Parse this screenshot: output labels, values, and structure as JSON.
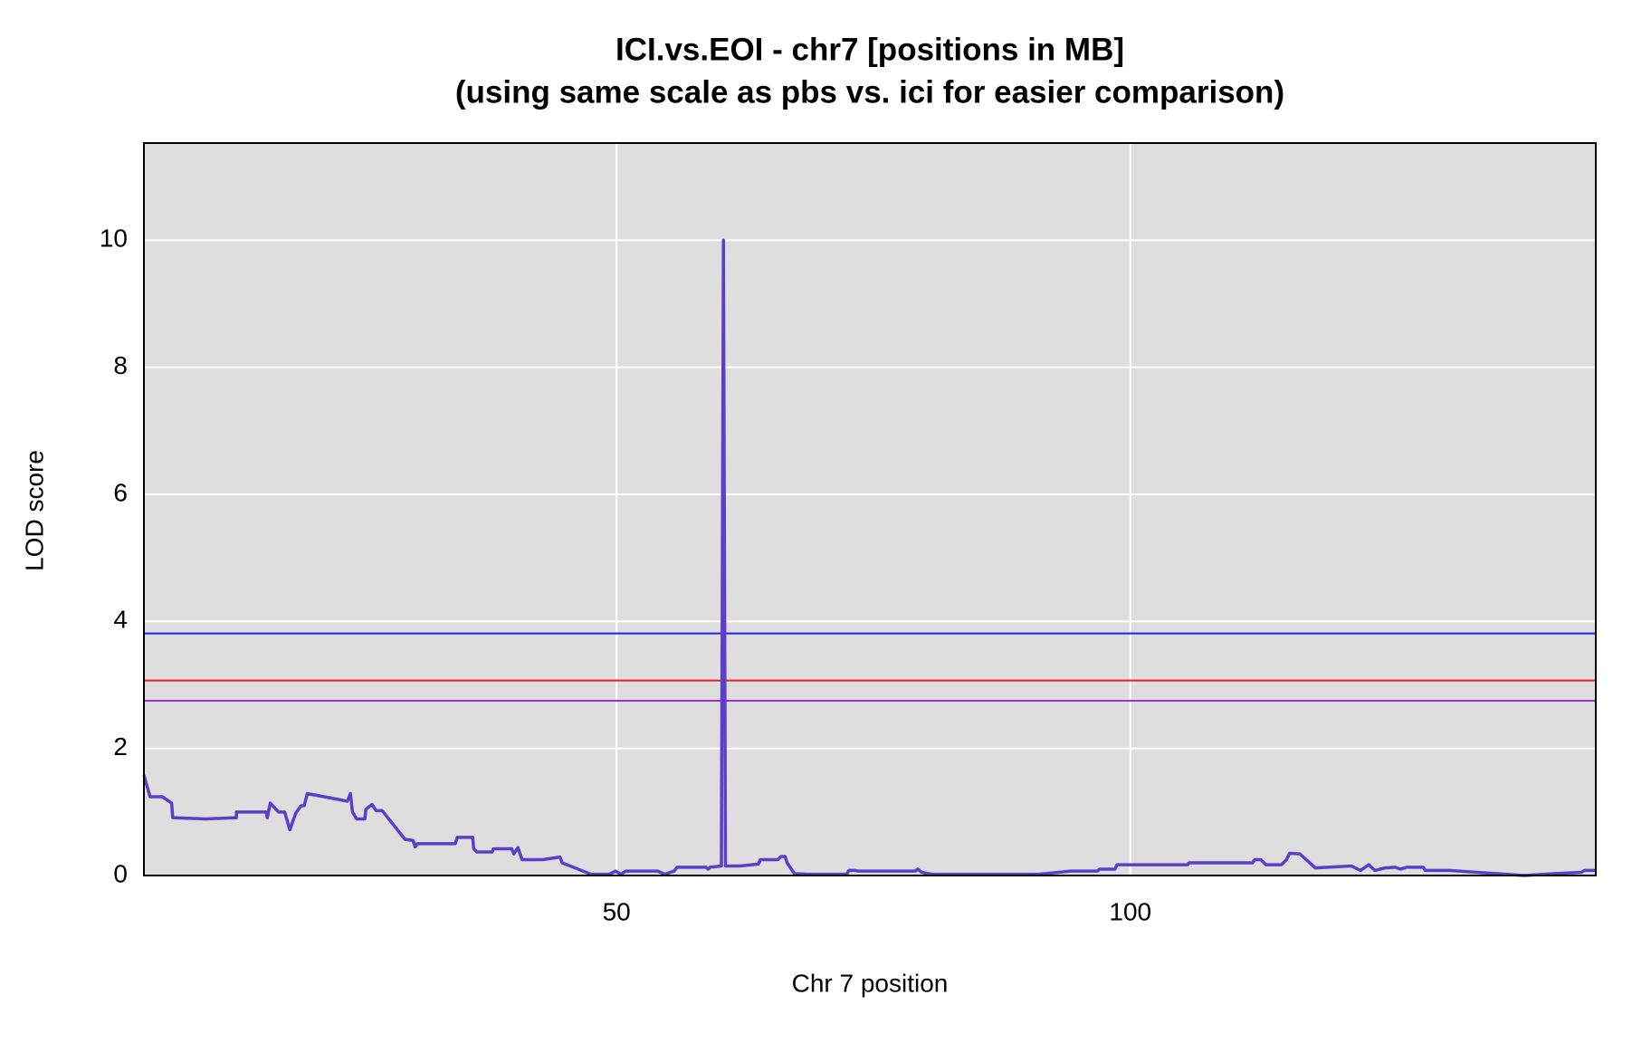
{
  "chart_data": {
    "type": "line",
    "title": "ICI.vs.EOI - chr7 [positions in MB]",
    "subtitle": "(using same scale as pbs vs. ici for easier comparison)",
    "x_label": "Chr 7 position",
    "y_label": "LOD score",
    "x": [
      4.0,
      4.6,
      5.8,
      6.7,
      6.8,
      10.0,
      13.0,
      13.0,
      15.9,
      16.0,
      16.3,
      17.1,
      17.7,
      18.2,
      18.8,
      19.3,
      19.6,
      19.9,
      23.8,
      24.1,
      24.3,
      24.7,
      25.5,
      25.6,
      26.2,
      26.6,
      27.2,
      29.4,
      30.2,
      30.4,
      30.6,
      34.3,
      34.5,
      36.0,
      36.1,
      36.4,
      37.9,
      38.0,
      39.8,
      40.0,
      40.4,
      40.8,
      42.8,
      44.5,
      44.7,
      47.5,
      49.3,
      49.9,
      50.4,
      50.9,
      54.0,
      54.7,
      55.6,
      55.9,
      58.7,
      58.9,
      59.1,
      60.2,
      60.4,
      60.6,
      62.0,
      63.8,
      64.0,
      65.7,
      66.0,
      66.4,
      66.6,
      67.3,
      68.6,
      72.4,
      72.6,
      73.2,
      73.5,
      79.1,
      79.3,
      79.7,
      80.7,
      91.1,
      94.2,
      96.8,
      97.0,
      98.5,
      98.7,
      105.6,
      105.7,
      111.9,
      112.1,
      112.7,
      113.2,
      114.7,
      115.2,
      115.5,
      116.5,
      118.0,
      121.5,
      122.4,
      123.2,
      123.8,
      124.8,
      125.8,
      126.3,
      126.9,
      128.5,
      128.7,
      131.0,
      138.3,
      141.4,
      143.9,
      144.2,
      145.3
    ],
    "values": [
      1.58,
      1.24,
      1.24,
      1.14,
      0.91,
      0.89,
      0.91,
      1.0,
      1.0,
      0.91,
      1.14,
      1.0,
      1.0,
      0.72,
      0.99,
      1.1,
      1.1,
      1.29,
      1.17,
      1.29,
      1.0,
      0.89,
      0.89,
      1.04,
      1.12,
      1.02,
      1.02,
      0.57,
      0.55,
      0.45,
      0.5,
      0.5,
      0.6,
      0.6,
      0.42,
      0.37,
      0.37,
      0.42,
      0.42,
      0.34,
      0.44,
      0.25,
      0.25,
      0.29,
      0.2,
      0.02,
      0.02,
      0.07,
      0.02,
      0.07,
      0.07,
      0.02,
      0.07,
      0.13,
      0.13,
      0.1,
      0.13,
      0.15,
      10.0,
      0.15,
      0.15,
      0.18,
      0.25,
      0.25,
      0.3,
      0.3,
      0.2,
      0.03,
      0.02,
      0.02,
      0.08,
      0.08,
      0.07,
      0.07,
      0.1,
      0.05,
      0.02,
      0.02,
      0.07,
      0.07,
      0.1,
      0.1,
      0.17,
      0.17,
      0.2,
      0.2,
      0.25,
      0.25,
      0.17,
      0.17,
      0.25,
      0.35,
      0.34,
      0.12,
      0.15,
      0.08,
      0.17,
      0.08,
      0.12,
      0.13,
      0.1,
      0.13,
      0.13,
      0.08,
      0.08,
      0,
      0.03,
      0.05,
      0.08,
      0.08
    ],
    "color": "#5a3fc9",
    "hlines": [
      {
        "value": 3.81,
        "color": "#1f1fff"
      },
      {
        "value": 3.07,
        "color": "#e0202a"
      },
      {
        "value": 2.75,
        "color": "#9a30e0"
      }
    ],
    "xlim": [
      4.0,
      145.3
    ],
    "ylim": [
      0,
      11.53
    ],
    "xticks": [
      50,
      100
    ],
    "yticks": [
      0,
      2,
      4,
      6,
      8,
      10
    ],
    "grid": true,
    "background": "#dedede"
  }
}
